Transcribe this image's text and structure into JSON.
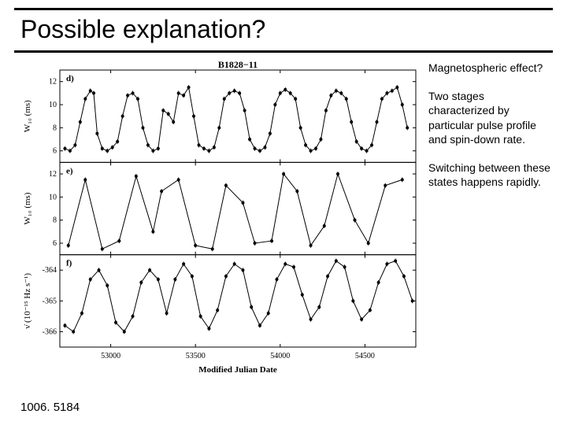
{
  "slide": {
    "title": "Possible explanation?",
    "footer_ref": "1006. 5184"
  },
  "side_notes": {
    "p1": "Magnetospheric effect?",
    "p2": "Two stages characterized by particular pulse profile and spin-down rate.",
    "p3": "Switching between these states happens rapidly."
  },
  "chart": {
    "object_title": "B1828−11",
    "xaxis": {
      "label": "Modified Julian Date",
      "ticks": [
        53000,
        53500,
        54000,
        54500
      ],
      "min": 52700,
      "max": 54800
    },
    "panels": [
      {
        "id": "d",
        "label": "d)",
        "ylabel": "W₁₀ (ms)",
        "yticks": [
          6,
          8,
          10,
          12
        ],
        "ymin": 5,
        "ymax": 13,
        "data": [
          [
            52730,
            6.2
          ],
          [
            52760,
            6.0
          ],
          [
            52790,
            6.5
          ],
          [
            52820,
            8.5
          ],
          [
            52850,
            10.5
          ],
          [
            52880,
            11.2
          ],
          [
            52900,
            11.0
          ],
          [
            52920,
            7.5
          ],
          [
            52950,
            6.2
          ],
          [
            52980,
            6.0
          ],
          [
            53010,
            6.3
          ],
          [
            53040,
            6.8
          ],
          [
            53070,
            9.0
          ],
          [
            53100,
            10.8
          ],
          [
            53130,
            11.0
          ],
          [
            53160,
            10.5
          ],
          [
            53190,
            8.0
          ],
          [
            53220,
            6.5
          ],
          [
            53250,
            6.0
          ],
          [
            53280,
            6.2
          ],
          [
            53310,
            9.5
          ],
          [
            53340,
            9.2
          ],
          [
            53370,
            8.5
          ],
          [
            53400,
            11.0
          ],
          [
            53430,
            10.8
          ],
          [
            53460,
            11.5
          ],
          [
            53490,
            9.0
          ],
          [
            53520,
            6.5
          ],
          [
            53550,
            6.2
          ],
          [
            53580,
            6.0
          ],
          [
            53610,
            6.3
          ],
          [
            53640,
            8.0
          ],
          [
            53670,
            10.5
          ],
          [
            53700,
            11.0
          ],
          [
            53730,
            11.2
          ],
          [
            53760,
            11.0
          ],
          [
            53790,
            9.5
          ],
          [
            53820,
            7.0
          ],
          [
            53850,
            6.2
          ],
          [
            53880,
            6.0
          ],
          [
            53910,
            6.3
          ],
          [
            53940,
            7.5
          ],
          [
            53970,
            10.0
          ],
          [
            54000,
            11.0
          ],
          [
            54030,
            11.3
          ],
          [
            54060,
            11.0
          ],
          [
            54090,
            10.5
          ],
          [
            54120,
            8.0
          ],
          [
            54150,
            6.5
          ],
          [
            54180,
            6.0
          ],
          [
            54210,
            6.2
          ],
          [
            54240,
            7.0
          ],
          [
            54270,
            9.5
          ],
          [
            54300,
            10.8
          ],
          [
            54330,
            11.2
          ],
          [
            54360,
            11.0
          ],
          [
            54390,
            10.5
          ],
          [
            54420,
            8.5
          ],
          [
            54450,
            6.8
          ],
          [
            54480,
            6.2
          ],
          [
            54510,
            6.0
          ],
          [
            54540,
            6.5
          ],
          [
            54570,
            8.5
          ],
          [
            54600,
            10.5
          ],
          [
            54630,
            11.0
          ],
          [
            54660,
            11.2
          ],
          [
            54690,
            11.5
          ],
          [
            54720,
            10.0
          ],
          [
            54750,
            8.0
          ]
        ]
      },
      {
        "id": "e",
        "label": "e)",
        "ylabel": "W₁₀ (ms)",
        "yticks": [
          6,
          8,
          10,
          12
        ],
        "ymin": 5,
        "ymax": 13,
        "data": [
          [
            52750,
            5.8
          ],
          [
            52850,
            11.5
          ],
          [
            52950,
            5.5
          ],
          [
            53050,
            6.2
          ],
          [
            53150,
            11.8
          ],
          [
            53250,
            7.0
          ],
          [
            53300,
            10.5
          ],
          [
            53400,
            11.5
          ],
          [
            53500,
            5.8
          ],
          [
            53600,
            5.5
          ],
          [
            53680,
            11.0
          ],
          [
            53780,
            9.5
          ],
          [
            53850,
            6.0
          ],
          [
            53950,
            6.2
          ],
          [
            54020,
            12.0
          ],
          [
            54100,
            10.5
          ],
          [
            54180,
            5.8
          ],
          [
            54260,
            7.5
          ],
          [
            54340,
            12.0
          ],
          [
            54440,
            8.0
          ],
          [
            54520,
            6.0
          ],
          [
            54620,
            11.0
          ],
          [
            54720,
            11.5
          ]
        ]
      },
      {
        "id": "f",
        "label": "f)",
        "ylabel": "ν̇ (10⁻¹⁵ Hz s⁻¹)",
        "yticks": [
          -366,
          -365,
          -364
        ],
        "ymin": -366.5,
        "ymax": -363.5,
        "data": [
          [
            52730,
            -365.8
          ],
          [
            52780,
            -366.0
          ],
          [
            52830,
            -365.4
          ],
          [
            52880,
            -364.3
          ],
          [
            52930,
            -364.0
          ],
          [
            52980,
            -364.5
          ],
          [
            53030,
            -365.7
          ],
          [
            53080,
            -366.0
          ],
          [
            53130,
            -365.5
          ],
          [
            53180,
            -364.4
          ],
          [
            53230,
            -364.0
          ],
          [
            53280,
            -364.3
          ],
          [
            53330,
            -365.4
          ],
          [
            53380,
            -364.3
          ],
          [
            53430,
            -363.8
          ],
          [
            53480,
            -364.2
          ],
          [
            53530,
            -365.5
          ],
          [
            53580,
            -365.9
          ],
          [
            53630,
            -365.3
          ],
          [
            53680,
            -364.2
          ],
          [
            53730,
            -363.8
          ],
          [
            53780,
            -364.0
          ],
          [
            53830,
            -365.2
          ],
          [
            53880,
            -365.8
          ],
          [
            53930,
            -365.4
          ],
          [
            53980,
            -364.3
          ],
          [
            54030,
            -363.8
          ],
          [
            54080,
            -363.9
          ],
          [
            54130,
            -364.8
          ],
          [
            54180,
            -365.6
          ],
          [
            54230,
            -365.2
          ],
          [
            54280,
            -364.2
          ],
          [
            54330,
            -363.7
          ],
          [
            54380,
            -363.9
          ],
          [
            54430,
            -365.0
          ],
          [
            54480,
            -365.6
          ],
          [
            54530,
            -365.3
          ],
          [
            54580,
            -364.4
          ],
          [
            54630,
            -363.8
          ],
          [
            54680,
            -363.7
          ],
          [
            54730,
            -364.2
          ],
          [
            54780,
            -365.0
          ]
        ]
      }
    ],
    "colors": {
      "line": "#000000",
      "marker": "#000000",
      "axis": "#000000",
      "background": "#ffffff"
    },
    "line_width": 1,
    "marker_size": 2.0
  }
}
